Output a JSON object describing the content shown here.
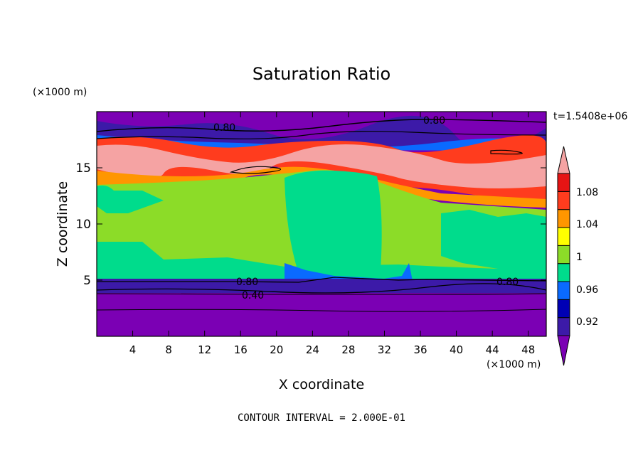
{
  "chart_data": {
    "type": "heatmap",
    "title": "Saturation Ratio",
    "xlabel": "X coordinate",
    "ylabel": "Z coordinate",
    "x_unit": "(×1000 m)",
    "y_unit": "(×1000 m)",
    "time_label": "t=1.5408e+06",
    "footer": "CONTOUR INTERVAL = 2.000E-01",
    "xlim": [
      0,
      50
    ],
    "ylim": [
      0,
      20
    ],
    "x_ticks": [
      "4",
      "8",
      "12",
      "16",
      "20",
      "24",
      "28",
      "32",
      "36",
      "40",
      "44",
      "48"
    ],
    "y_ticks": [
      "5",
      "10",
      "15"
    ],
    "colorbar": {
      "labels": [
        "1.08",
        "1.04",
        "1",
        "0.96",
        "0.92"
      ],
      "colors": [
        "#7b00b4",
        "#3c1aa8",
        "#0000b4",
        "#0a6aff",
        "#00dc8c",
        "#8cdc28",
        "#ffff00",
        "#ff9600",
        "#ff3c1e",
        "#e61414",
        "#f5a3a3"
      ]
    },
    "contour_labels": [
      "0.80",
      "0.80",
      "0.80",
      "0.40",
      "0.80"
    ]
  }
}
